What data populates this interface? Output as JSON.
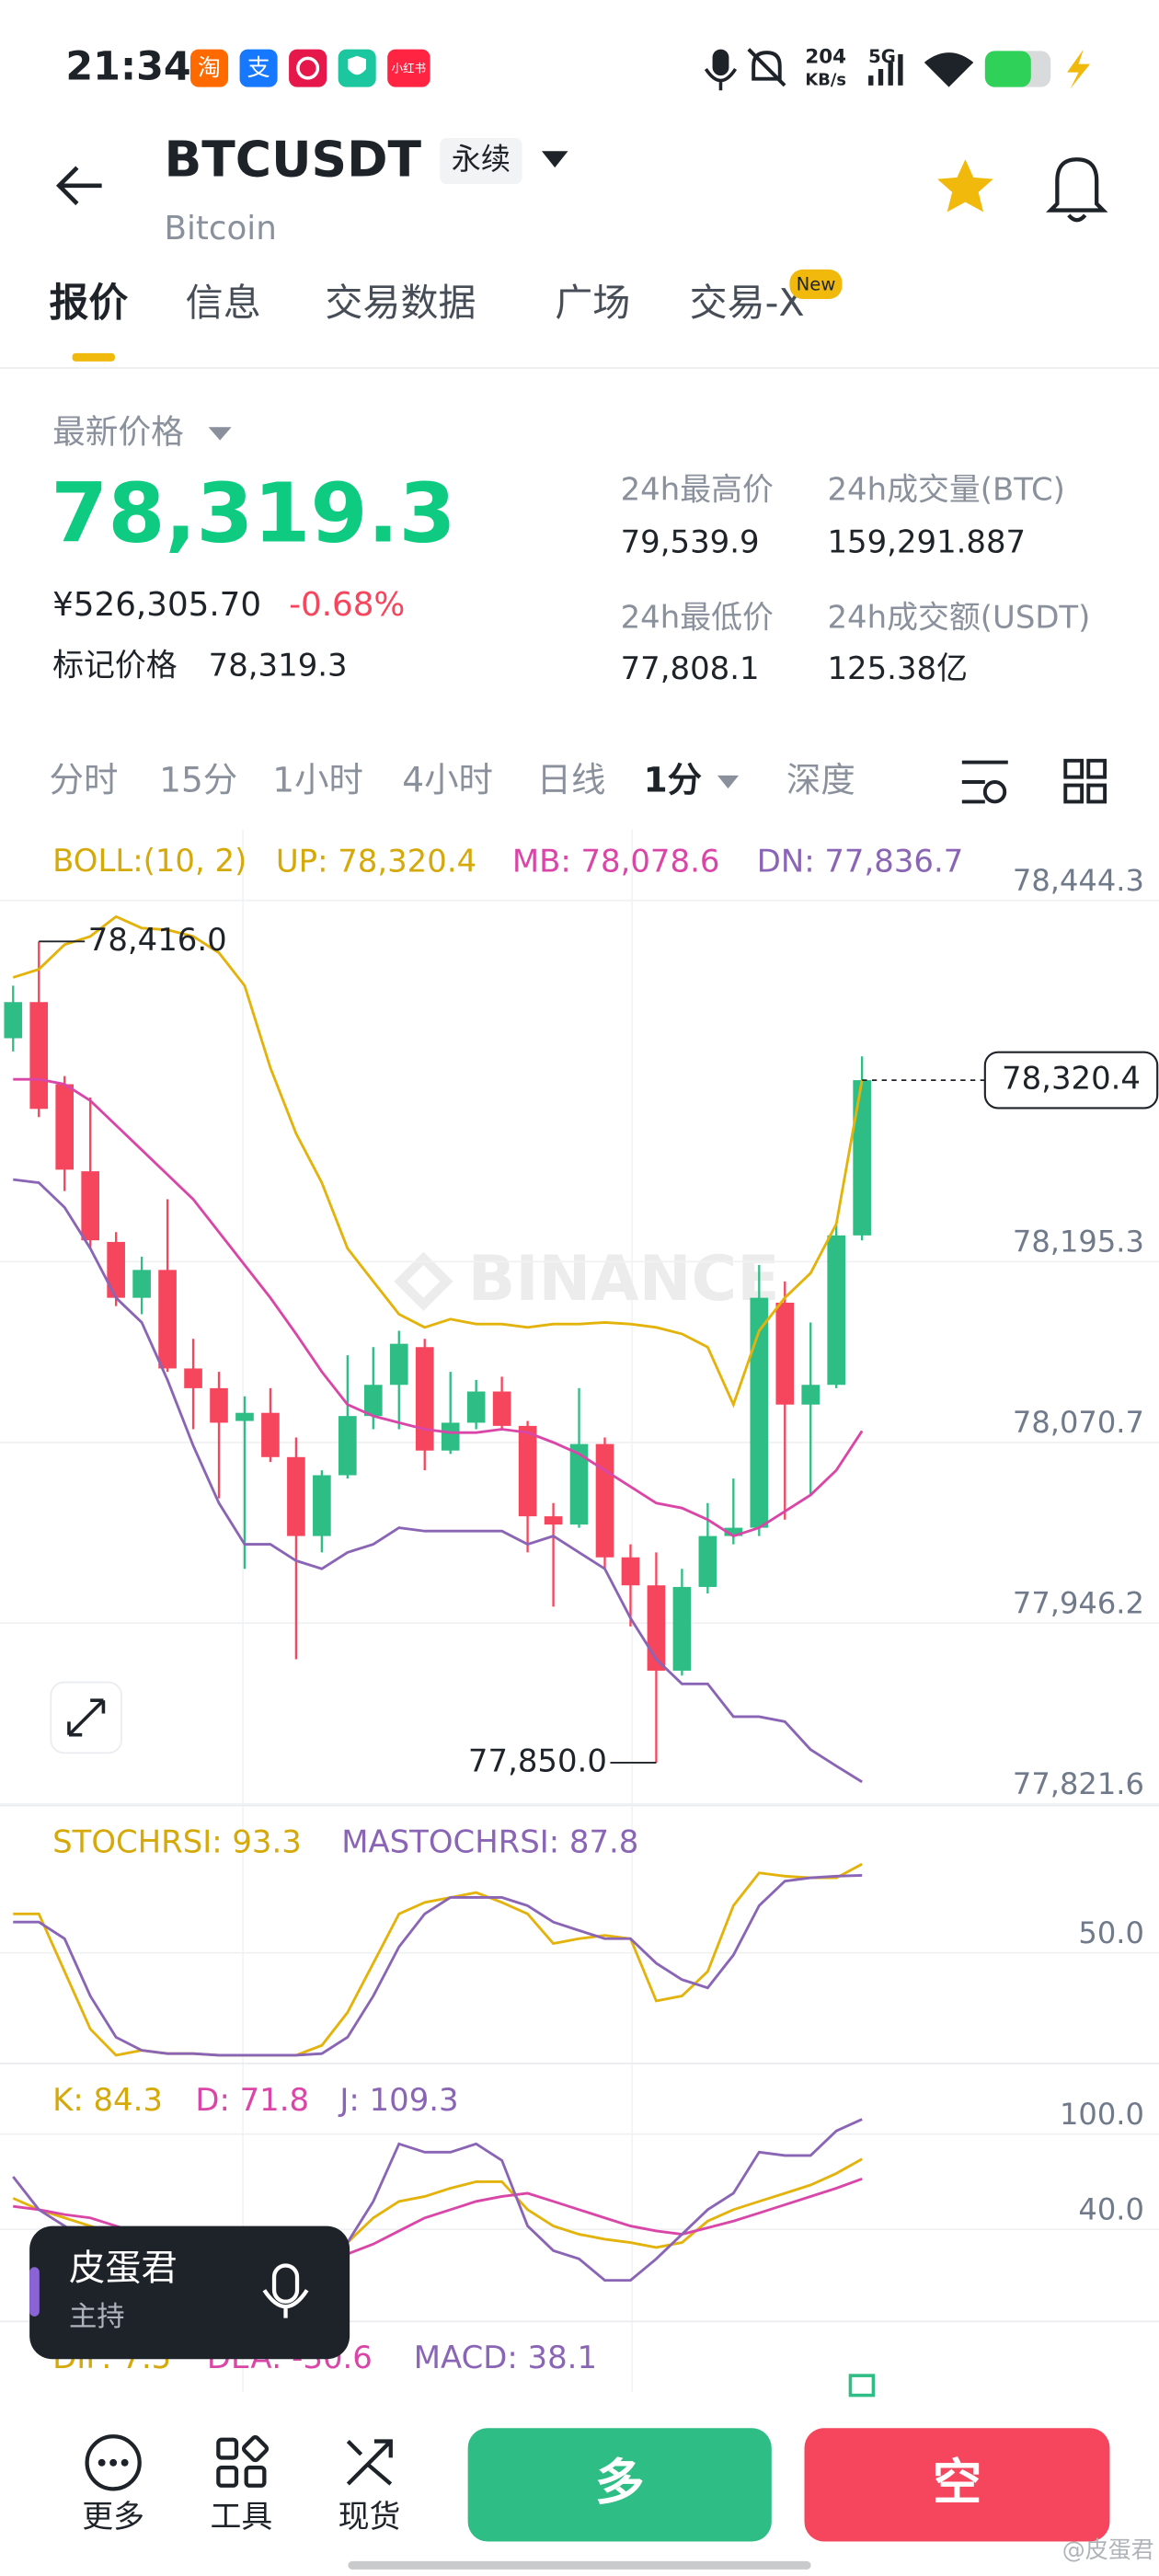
{
  "status_bar": {
    "time": "21:34",
    "app_icons": [
      "淘",
      "支",
      "小红书"
    ],
    "speed": "204",
    "speed_unit": "KB/s",
    "network": "5G"
  },
  "header": {
    "symbol": "BTCUSDT",
    "contract": "永续",
    "name": "Bitcoin"
  },
  "tabs": [
    "报价",
    "信息",
    "交易数据",
    "广场",
    "交易-X"
  ],
  "tab_badge": "New",
  "ticker": {
    "price_label": "最新价格",
    "price": "78,319.3",
    "cny": "¥526,305.70",
    "change": "-0.68%",
    "mark_label": "标记价格",
    "mark_price": "78,319.3",
    "high_label": "24h最高价",
    "high": "79,539.9",
    "volume_label": "24h成交量(BTC)",
    "volume": "159,291.887",
    "low_label": "24h最低价",
    "low": "77,808.1",
    "turnover_label": "24h成交额(USDT)",
    "turnover": "125.38亿"
  },
  "timeframes": [
    "分时",
    "15分",
    "1小时",
    "4小时",
    "日线",
    "1分",
    "深度"
  ],
  "watermark": "BINANCE",
  "chart_data": [
    {
      "type": "candlestick",
      "title": "BOLL:(10, 2)",
      "title_color": "#d6a90a",
      "up_color": "#2ebd85",
      "down_color": "#f6465d",
      "ylim": [
        77821.6,
        78487.4
      ],
      "yticks": [
        {
          "value": 78444.3,
          "label": "78,444.3"
        },
        {
          "value": 78195.3,
          "label": "78,195.3"
        },
        {
          "value": 78070.7,
          "label": "78,070.7"
        },
        {
          "value": 77946.2,
          "label": "77,946.2"
        },
        {
          "value": 77821.6,
          "label": "77,821.6"
        }
      ],
      "candles": {
        "open": [
          78349.3,
          78374.2,
          78317.6,
          78257.6,
          78208.9,
          78170.4,
          78189.6,
          78121.7,
          78108.1,
          78085.5,
          78091.1,
          78060.6,
          78006.2,
          78048.1,
          78088.9,
          78110.4,
          78136.4,
          78065.1,
          78084.3,
          78105.8,
          78082.1,
          78019.8,
          78014.1,
          78069.6,
          77991.5,
          77972.2,
          77913.4,
          77971.1,
          78006.2,
          78011.9,
          78167.0,
          78096.8,
          78110.4,
          78213.4
        ],
        "high": [
          78385.5,
          78416.0,
          78323.2,
          78308.5,
          78215.7,
          78198.7,
          78238.3,
          78142.1,
          78119.4,
          78102.5,
          78108.1,
          78074.1,
          78051.5,
          78130.8,
          78136.4,
          78147.7,
          78142.1,
          78119.4,
          78113.8,
          78116.0,
          78085.5,
          78028.9,
          78108.1,
          78074.1,
          78000.5,
          77994.9,
          77983.6,
          78028.9,
          78045.8,
          78193.0,
          78181.7,
          78153.4,
          78221.3,
          78336.8
        ],
        "low": [
          78340.2,
          78294.9,
          78244.0,
          78204.4,
          78164.7,
          78159.1,
          78119.4,
          78079.8,
          78032.2,
          77983.6,
          78057.2,
          77921.3,
          77994.9,
          78045.8,
          78079.8,
          78079.8,
          78051.5,
          78062.8,
          78079.8,
          78079.8,
          77994.9,
          77957.5,
          78011.9,
          77983.6,
          77943.9,
          77850.0,
          77910.0,
          77966.6,
          78000.5,
          78006.2,
          78017.5,
          78034.5,
          78108.1,
          78210.0
        ],
        "close": [
          78374.2,
          78300.6,
          78258.7,
          78210.0,
          78170.4,
          78189.6,
          78121.7,
          78108.1,
          78084.3,
          78091.1,
          78060.6,
          78006.2,
          78048.1,
          78088.9,
          78110.4,
          78138.7,
          78065.1,
          78084.3,
          78105.8,
          78082.1,
          78019.8,
          78014.1,
          78069.6,
          77991.5,
          77972.2,
          77913.4,
          77971.1,
          78006.2,
          78011.9,
          78170.4,
          78096.8,
          78110.4,
          78213.4,
          78320.4
        ]
      },
      "series": [
        {
          "name": "UP:",
          "color": "#e3b30c",
          "last_value_label": "78,320.4",
          "values": [
            78391.2,
            78396.8,
            78413.8,
            78419.5,
            78433.1,
            78425.2,
            78424.0,
            78419.5,
            78408.2,
            78385.5,
            78328.9,
            78283.6,
            78249.7,
            78204.4,
            78181.7,
            78159.1,
            78150.0,
            78155.7,
            78152.3,
            78152.3,
            78150.0,
            78152.3,
            78152.3,
            78153.4,
            78152.3,
            78150.0,
            78145.5,
            78136.4,
            78096.8,
            78147.7,
            78170.4,
            78187.4,
            78221.3,
            78320.4
          ]
        },
        {
          "name": "MB:",
          "color": "#d946a8",
          "last_value_label": "78,078.6",
          "values": [
            78321.0,
            78321.0,
            78317.6,
            78306.3,
            78289.3,
            78272.3,
            78255.3,
            78238.3,
            78215.7,
            78193.0,
            78170.4,
            78145.5,
            78119.4,
            78096.8,
            78088.9,
            78084.3,
            78079.8,
            78077.5,
            78077.5,
            78079.8,
            78077.5,
            78070.7,
            78062.8,
            78051.5,
            78040.2,
            78028.9,
            78025.5,
            78017.5,
            78006.2,
            78011.9,
            78023.2,
            78034.5,
            78051.5,
            78078.6
          ]
        },
        {
          "name": "DN:",
          "color": "#8a64b5",
          "last_value_label": "77,836.7",
          "values": [
            78251.9,
            78249.7,
            78232.7,
            78204.4,
            78170.4,
            78153.4,
            78113.8,
            78068.5,
            78028.9,
            78000.5,
            78000.5,
            77989.2,
            77983.6,
            77994.9,
            78000.5,
            78011.9,
            78009.6,
            78009.6,
            78009.6,
            78009.6,
            78000.5,
            78006.2,
            77994.9,
            77983.6,
            77949.6,
            77921.3,
            77904.3,
            77904.3,
            77881.7,
            77881.7,
            77878.3,
            77859.0,
            77847.7,
            77836.7
          ]
        }
      ],
      "high_annotation": {
        "value": 78416.0,
        "label": "78,416.0"
      },
      "low_annotation": {
        "value": 77850.0,
        "label": "77,850.0"
      },
      "last_price": {
        "value": 78320.4,
        "label": "78,320.4"
      }
    },
    {
      "type": "line",
      "ylim": [
        -3.2,
        121.1
      ],
      "yticks": [
        {
          "value": 50,
          "label": "50.0"
        }
      ],
      "series": [
        {
          "name": "STOCHRSI:",
          "color": "#e3b30c",
          "last_value_label": "93.3",
          "values": [
            69.0,
            69.0,
            40.9,
            12.8,
            0.0,
            2.4,
            0.8,
            0.8,
            0.0,
            0.0,
            0.0,
            0.0,
            4.8,
            20.9,
            44.9,
            69.0,
            74.6,
            77.0,
            79.4,
            74.6,
            69.0,
            54.5,
            56.9,
            58.5,
            56.9,
            26.5,
            28.9,
            40.9,
            73.0,
            89.0,
            87.4,
            86.6,
            86.6,
            93.3
          ]
        },
        {
          "name": "MASTOCHRSI:",
          "color": "#8a64b5",
          "last_value_label": "87.8",
          "values": [
            65.0,
            65.0,
            56.9,
            28.9,
            8.8,
            2.4,
            0.8,
            0.8,
            0.0,
            0.0,
            0.0,
            0.0,
            0.8,
            8.8,
            28.9,
            52.9,
            69.0,
            77.0,
            77.0,
            77.0,
            73.0,
            65.0,
            60.9,
            56.9,
            56.9,
            44.9,
            36.9,
            32.9,
            48.9,
            73.0,
            85.0,
            86.6,
            87.4,
            87.8
          ]
        }
      ]
    },
    {
      "type": "line",
      "ylim": [
        -16.9,
        142.4
      ],
      "yticks": [
        {
          "value": 100,
          "label": "100.0"
        },
        {
          "value": 40,
          "label": "40.0"
        }
      ],
      "series": [
        {
          "name": "K:",
          "color": "#e3b30c",
          "last_value_label": "84.3",
          "values": [
            59.6,
            52.4,
            47.2,
            42.1,
            36.9,
            31.7,
            26.6,
            21.4,
            18.3,
            18.3,
            18.3,
            18.3,
            21.4,
            31.7,
            47.2,
            57.6,
            60.7,
            65.9,
            70.0,
            70.0,
            52.4,
            42.1,
            36.9,
            33.8,
            31.7,
            28.6,
            31.7,
            45.2,
            52.4,
            57.6,
            62.7,
            67.9,
            75.2,
            84.3
          ]
        },
        {
          "name": "D:",
          "color": "#d946a8",
          "last_value_label": "71.8",
          "values": [
            54.5,
            52.4,
            49.3,
            47.2,
            42.1,
            36.9,
            33.8,
            29.7,
            24.5,
            22.4,
            21.4,
            20.4,
            19.3,
            24.5,
            30.7,
            39.0,
            47.2,
            52.4,
            57.6,
            60.7,
            62.7,
            57.6,
            52.4,
            47.2,
            42.1,
            39.0,
            36.9,
            41.0,
            45.2,
            50.3,
            55.5,
            60.7,
            65.9,
            71.8
          ]
        },
        {
          "name": "J:",
          "color": "#8a64b5",
          "last_value_label": "109.3",
          "values": [
            73.1,
            52.4,
            42.1,
            31.7,
            26.6,
            18.3,
            11.0,
            3.8,
            0.7,
            0.7,
            0.7,
            3.8,
            11.0,
            31.7,
            57.6,
            93.8,
            88.6,
            88.6,
            93.8,
            83.4,
            42.1,
            26.6,
            21.4,
            7.9,
            7.9,
            21.4,
            36.9,
            52.4,
            62.7,
            88.6,
            86.5,
            86.5,
            102.0,
            109.3
          ]
        }
      ]
    }
  ],
  "macd_legend": [
    "DIF: 7.5",
    "DEA: -30.6",
    "MACD: 38.1"
  ],
  "overlay": {
    "name": "皮蛋君",
    "role": "主持"
  },
  "bottom_nav": {
    "items": [
      "更多",
      "工具",
      "现货"
    ],
    "long": "多",
    "short": "空"
  },
  "footer_watermark": "@皮蛋君"
}
